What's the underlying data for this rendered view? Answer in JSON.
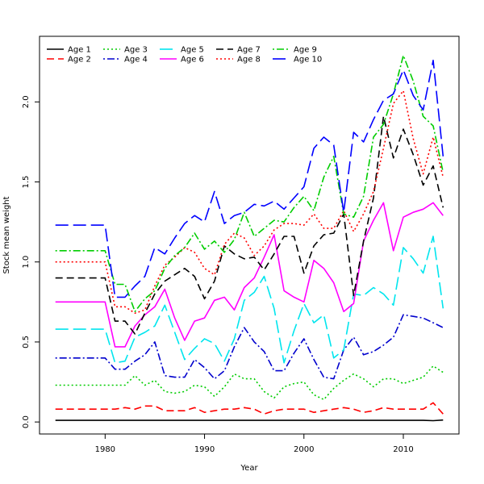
{
  "chart_data": {
    "type": "line",
    "title": "",
    "xlabel": "Year",
    "ylabel": "Stock mean weight",
    "xlim": [
      1973.4,
      2015.6
    ],
    "ylim": [
      -0.075,
      2.41
    ],
    "xticks": [
      1980,
      1990,
      2000,
      2010
    ],
    "yticks": [
      0.0,
      0.5,
      1.0,
      1.5,
      2.0
    ],
    "yticklabels": [
      "0.0",
      "0.5",
      "1.0",
      "1.5",
      "2.0"
    ],
    "legend_position": "top-left",
    "x": [
      1975,
      1976,
      1977,
      1978,
      1979,
      1980,
      1981,
      1982,
      1983,
      1984,
      1985,
      1986,
      1987,
      1988,
      1989,
      1990,
      1991,
      1992,
      1993,
      1994,
      1995,
      1996,
      1997,
      1998,
      1999,
      2000,
      2001,
      2002,
      2003,
      2004,
      2005,
      2006,
      2007,
      2008,
      2009,
      2010,
      2011,
      2012,
      2013,
      2014
    ],
    "series": [
      {
        "name": "Age 1",
        "color": "#000000",
        "dash": "solid",
        "values": [
          0.01,
          0.01,
          0.01,
          0.01,
          0.01,
          0.01,
          0.01,
          0.01,
          0.01,
          0.01,
          0.01,
          0.01,
          0.01,
          0.01,
          0.01,
          0.01,
          0.01,
          0.01,
          0.01,
          0.01,
          0.01,
          0.01,
          0.01,
          0.01,
          0.01,
          0.01,
          0.01,
          0.01,
          0.01,
          0.01,
          0.01,
          0.01,
          0.01,
          0.01,
          0.01,
          0.01,
          0.01,
          0.01,
          0.008,
          0.012
        ]
      },
      {
        "name": "Age 2",
        "color": "#ff0000",
        "dash": "dashed",
        "values": [
          0.08,
          0.08,
          0.08,
          0.08,
          0.08,
          0.08,
          0.08,
          0.09,
          0.08,
          0.1,
          0.1,
          0.07,
          0.07,
          0.07,
          0.09,
          0.06,
          0.07,
          0.08,
          0.08,
          0.09,
          0.08,
          0.05,
          0.07,
          0.08,
          0.08,
          0.08,
          0.06,
          0.07,
          0.08,
          0.09,
          0.08,
          0.06,
          0.07,
          0.09,
          0.08,
          0.08,
          0.08,
          0.08,
          0.12,
          0.05
        ]
      },
      {
        "name": "Age 3",
        "color": "#00cc00",
        "dash": "dotted",
        "values": [
          0.23,
          0.23,
          0.23,
          0.23,
          0.23,
          0.23,
          0.23,
          0.23,
          0.29,
          0.23,
          0.26,
          0.19,
          0.18,
          0.19,
          0.23,
          0.22,
          0.16,
          0.22,
          0.3,
          0.27,
          0.27,
          0.19,
          0.15,
          0.22,
          0.24,
          0.25,
          0.17,
          0.14,
          0.21,
          0.26,
          0.3,
          0.27,
          0.22,
          0.27,
          0.27,
          0.24,
          0.26,
          0.28,
          0.35,
          0.31
        ]
      },
      {
        "name": "Age 4",
        "color": "#0000cd",
        "dash": "dotdash",
        "values": [
          0.4,
          0.4,
          0.4,
          0.4,
          0.4,
          0.4,
          0.33,
          0.33,
          0.38,
          0.42,
          0.5,
          0.29,
          0.28,
          0.28,
          0.39,
          0.34,
          0.27,
          0.32,
          0.47,
          0.59,
          0.5,
          0.44,
          0.32,
          0.32,
          0.43,
          0.52,
          0.39,
          0.28,
          0.27,
          0.45,
          0.53,
          0.42,
          0.44,
          0.48,
          0.53,
          0.67,
          0.66,
          0.65,
          0.62,
          0.59
        ]
      },
      {
        "name": "Age 5",
        "color": "#00e5ee",
        "dash": "longdash",
        "values": [
          0.58,
          0.58,
          0.58,
          0.58,
          0.58,
          0.58,
          0.37,
          0.38,
          0.53,
          0.56,
          0.6,
          0.73,
          0.56,
          0.39,
          0.46,
          0.52,
          0.49,
          0.38,
          0.52,
          0.76,
          0.81,
          0.91,
          0.71,
          0.37,
          0.57,
          0.74,
          0.62,
          0.67,
          0.4,
          0.45,
          0.8,
          0.79,
          0.84,
          0.8,
          0.73,
          1.09,
          1.02,
          0.93,
          1.16,
          0.71
        ]
      },
      {
        "name": "Age 6",
        "color": "#ff00ff",
        "dash": "solid",
        "values": [
          0.75,
          0.75,
          0.75,
          0.75,
          0.75,
          0.75,
          0.47,
          0.47,
          0.6,
          0.67,
          0.72,
          0.83,
          0.65,
          0.51,
          0.63,
          0.65,
          0.76,
          0.78,
          0.7,
          0.84,
          0.9,
          1.03,
          1.17,
          0.82,
          0.78,
          0.75,
          1.01,
          0.96,
          0.87,
          0.69,
          0.74,
          1.13,
          1.26,
          1.37,
          1.07,
          1.28,
          1.31,
          1.33,
          1.37,
          1.29
        ]
      },
      {
        "name": "Age 7",
        "color": "#000000",
        "dash": "dashed",
        "values": [
          0.9,
          0.9,
          0.9,
          0.9,
          0.9,
          0.9,
          0.63,
          0.63,
          0.55,
          0.68,
          0.8,
          0.88,
          0.92,
          0.96,
          0.91,
          0.77,
          0.88,
          1.1,
          1.05,
          1.02,
          1.03,
          0.95,
          1.05,
          1.16,
          1.16,
          0.93,
          1.1,
          1.17,
          1.18,
          1.3,
          0.79,
          1.13,
          1.4,
          1.91,
          1.65,
          1.83,
          1.67,
          1.48,
          1.6,
          1.34
        ]
      },
      {
        "name": "Age 8",
        "color": "#ff0000",
        "dash": "dotted",
        "values": [
          1.0,
          1.0,
          1.0,
          1.0,
          1.0,
          1.0,
          0.72,
          0.72,
          0.68,
          0.7,
          0.85,
          0.98,
          1.03,
          1.09,
          1.06,
          0.96,
          0.92,
          1.11,
          1.18,
          1.15,
          1.04,
          1.1,
          1.2,
          1.24,
          1.24,
          1.23,
          1.3,
          1.21,
          1.21,
          1.32,
          1.19,
          1.3,
          1.44,
          1.71,
          1.99,
          2.07,
          1.77,
          1.55,
          1.78,
          1.53
        ]
      },
      {
        "name": "Age 9",
        "color": "#00cd00",
        "dash": "dotdash",
        "values": [
          1.07,
          1.07,
          1.07,
          1.07,
          1.07,
          1.07,
          0.86,
          0.86,
          0.69,
          0.77,
          0.82,
          0.96,
          1.04,
          1.09,
          1.18,
          1.08,
          1.13,
          1.06,
          1.14,
          1.31,
          1.16,
          1.21,
          1.26,
          1.25,
          1.34,
          1.41,
          1.32,
          1.53,
          1.66,
          1.3,
          1.28,
          1.41,
          1.78,
          1.86,
          2.05,
          2.29,
          2.13,
          1.91,
          1.85,
          1.56
        ]
      },
      {
        "name": "Age 10",
        "color": "#0000ff",
        "dash": "longdash",
        "values": [
          1.23,
          1.23,
          1.23,
          1.23,
          1.23,
          1.23,
          0.78,
          0.78,
          0.85,
          0.91,
          1.09,
          1.05,
          1.15,
          1.24,
          1.29,
          1.25,
          1.44,
          1.24,
          1.29,
          1.31,
          1.36,
          1.35,
          1.38,
          1.33,
          1.4,
          1.47,
          1.71,
          1.78,
          1.73,
          1.31,
          1.81,
          1.75,
          1.89,
          2.01,
          2.05,
          2.2,
          2.04,
          1.95,
          2.26,
          1.66
        ]
      }
    ]
  }
}
